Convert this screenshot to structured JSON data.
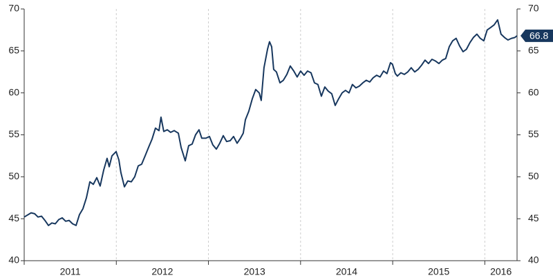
{
  "chart_data": {
    "type": "line",
    "x": [
      2011.0,
      2011.075,
      2011.113,
      2011.15,
      2011.188,
      2011.225,
      2011.263,
      2011.3,
      2011.338,
      2011.375,
      2011.413,
      2011.45,
      2011.488,
      2011.525,
      2011.563,
      2011.6,
      2011.638,
      2011.675,
      2011.713,
      2011.75,
      2011.788,
      2011.825,
      2011.863,
      2011.9,
      2011.923,
      2011.953,
      2011.998,
      2012.028,
      2012.05,
      2012.088,
      2012.125,
      2012.163,
      2012.2,
      2012.238,
      2012.275,
      2012.313,
      2012.35,
      2012.388,
      2012.425,
      2012.463,
      2012.485,
      2012.515,
      2012.553,
      2012.59,
      2012.628,
      2012.673,
      2012.703,
      2012.748,
      2012.785,
      2012.823,
      2012.86,
      2012.898,
      2012.928,
      2012.973,
      2013.011,
      2013.048,
      2013.086,
      2013.123,
      2013.161,
      2013.198,
      2013.236,
      2013.273,
      2013.311,
      2013.348,
      2013.378,
      2013.401,
      2013.438,
      2013.476,
      2013.513,
      2013.551,
      2013.573,
      2013.603,
      2013.641,
      2013.663,
      2013.686,
      2013.708,
      2013.738,
      2013.776,
      2013.813,
      2013.851,
      2013.888,
      2013.926,
      2013.963,
      2014.001,
      2014.038,
      2014.076,
      2014.113,
      2014.151,
      2014.188,
      2014.226,
      2014.263,
      2014.301,
      2014.338,
      2014.376,
      2014.413,
      2014.451,
      2014.488,
      2014.526,
      2014.563,
      2014.601,
      2014.638,
      2014.676,
      2014.713,
      2014.751,
      2014.788,
      2014.826,
      2014.863,
      2014.901,
      2014.938,
      2014.976,
      2014.998,
      2015.029,
      2015.051,
      2015.089,
      2015.126,
      2015.164,
      2015.201,
      2015.239,
      2015.276,
      2015.314,
      2015.351,
      2015.389,
      2015.426,
      2015.464,
      2015.501,
      2015.539,
      2015.576,
      2015.614,
      2015.651,
      2015.689,
      2015.726,
      2015.764,
      2015.801,
      2015.839,
      2015.876,
      2015.914,
      2015.951,
      2015.989,
      2016.026,
      2016.064,
      2016.101,
      2016.139,
      2016.176,
      2016.214,
      2016.251,
      2016.289,
      2016.326,
      2016.349
    ],
    "series": [
      {
        "color": "#17375e",
        "values": [
          45.2,
          45.7,
          45.6,
          45.2,
          45.3,
          44.8,
          44.2,
          44.5,
          44.4,
          44.9,
          45.1,
          44.7,
          44.8,
          44.4,
          44.2,
          45.5,
          46.2,
          47.5,
          49.4,
          49.1,
          49.9,
          48.9,
          50.8,
          52.2,
          51.2,
          52.5,
          53.0,
          52.0,
          50.5,
          48.8,
          49.5,
          49.4,
          50.0,
          51.3,
          51.5,
          52.5,
          53.5,
          54.5,
          55.8,
          55.5,
          57.1,
          55.4,
          55.6,
          55.3,
          55.5,
          55.2,
          53.5,
          51.9,
          53.7,
          53.9,
          55.0,
          55.6,
          54.6,
          54.6,
          54.8,
          53.8,
          53.3,
          54.0,
          54.9,
          54.2,
          54.3,
          54.8,
          54.0,
          54.6,
          55.2,
          56.8,
          57.8,
          59.3,
          60.4,
          60.0,
          59.1,
          63.0,
          65.2,
          66.1,
          65.5,
          62.8,
          62.5,
          61.2,
          61.5,
          62.2,
          63.2,
          62.6,
          61.9,
          62.6,
          62.1,
          62.6,
          62.4,
          61.2,
          61.0,
          59.6,
          60.7,
          60.2,
          59.9,
          58.5,
          59.3,
          60.0,
          60.3,
          60.0,
          61.0,
          60.6,
          60.8,
          61.2,
          61.5,
          61.3,
          61.8,
          62.1,
          61.9,
          62.6,
          62.3,
          63.6,
          63.4,
          62.3,
          62.0,
          62.4,
          62.2,
          62.5,
          63.0,
          62.5,
          62.8,
          63.3,
          63.9,
          63.5,
          64.0,
          63.8,
          63.5,
          63.9,
          64.1,
          65.5,
          66.2,
          66.5,
          65.6,
          64.9,
          65.2,
          66.0,
          66.6,
          67.0,
          66.5,
          66.2,
          67.5,
          67.8,
          68.1,
          68.7,
          67.0,
          66.6,
          66.3,
          66.5,
          66.6,
          66.8
        ]
      }
    ],
    "xlim": [
      2011,
      2016.35
    ],
    "xticks": [
      2011,
      2012,
      2013,
      2014,
      2015,
      2016
    ],
    "ylim": [
      40,
      70
    ],
    "yticks": [
      40,
      45,
      50,
      55,
      60,
      65,
      70
    ],
    "grid": true
  }
}
